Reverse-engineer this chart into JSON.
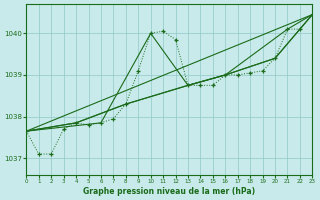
{
  "title": "Graphe pression niveau de la mer (hPa)",
  "bg_color": "#c8eaea",
  "grid_color": "#90c8c8",
  "line_color": "#1a6b1a",
  "x_min": 0,
  "x_max": 23,
  "y_min": 1036.6,
  "y_max": 1040.7,
  "y_ticks": [
    1037,
    1038,
    1039,
    1040
  ],
  "x_ticks": [
    0,
    1,
    2,
    3,
    4,
    5,
    6,
    7,
    8,
    9,
    10,
    11,
    12,
    13,
    14,
    15,
    16,
    17,
    18,
    19,
    20,
    21,
    22,
    23
  ],
  "main_series": [
    [
      0,
      1037.65
    ],
    [
      1,
      1037.1
    ],
    [
      2,
      1037.1
    ],
    [
      3,
      1037.7
    ],
    [
      4,
      1037.85
    ],
    [
      5,
      1037.8
    ],
    [
      6,
      1037.85
    ],
    [
      7,
      1037.95
    ],
    [
      8,
      1038.3
    ],
    [
      9,
      1039.1
    ],
    [
      10,
      1040.0
    ],
    [
      11,
      1040.05
    ],
    [
      12,
      1039.85
    ],
    [
      13,
      1038.75
    ],
    [
      14,
      1038.75
    ],
    [
      15,
      1038.75
    ],
    [
      16,
      1039.0
    ],
    [
      17,
      1039.0
    ],
    [
      18,
      1039.05
    ],
    [
      19,
      1039.1
    ],
    [
      20,
      1039.4
    ],
    [
      21,
      1040.1
    ],
    [
      22,
      1040.1
    ],
    [
      23,
      1040.45
    ]
  ],
  "line_straight": [
    [
      0,
      1037.65
    ],
    [
      23,
      1040.45
    ]
  ],
  "line_trend1": [
    [
      0,
      1037.65
    ],
    [
      4,
      1037.85
    ],
    [
      8,
      1038.3
    ],
    [
      13,
      1038.75
    ],
    [
      16,
      1039.0
    ],
    [
      20,
      1039.4
    ],
    [
      23,
      1040.45
    ]
  ],
  "line_trend2": [
    [
      0,
      1037.65
    ],
    [
      4,
      1037.85
    ],
    [
      8,
      1038.3
    ],
    [
      13,
      1038.75
    ],
    [
      16,
      1039.0
    ],
    [
      21,
      1040.1
    ],
    [
      23,
      1040.45
    ]
  ],
  "line_trend3": [
    [
      0,
      1037.65
    ],
    [
      6,
      1037.85
    ],
    [
      10,
      1040.0
    ],
    [
      13,
      1038.75
    ],
    [
      16,
      1039.0
    ],
    [
      20,
      1039.4
    ],
    [
      23,
      1040.45
    ]
  ]
}
